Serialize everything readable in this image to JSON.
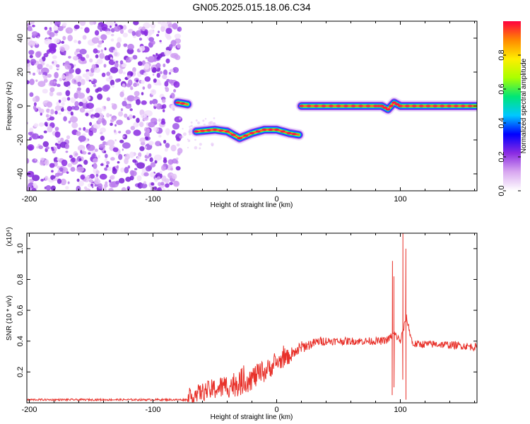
{
  "title": "GN05.2025.015.18.06.C34",
  "chart_data": [
    {
      "type": "heatmap",
      "xlabel": "Height of straight line (km)",
      "ylabel": "Frequency (Hz)",
      "xlim": [
        -202,
        162
      ],
      "ylim": [
        -50,
        50
      ],
      "xticks": [
        -200,
        -100,
        0,
        100
      ],
      "yticks": [
        -40,
        -20,
        0,
        20,
        40
      ],
      "colorbar": {
        "label": "Normalized spectral amplitude",
        "range": [
          0,
          1
        ],
        "ticks": [
          "0.0",
          "0.2",
          "0.4",
          "0.6",
          "0.8"
        ],
        "colors": [
          "#ffffff",
          "#d9a8f0",
          "#8b2be2",
          "#0000ff",
          "#00c8ff",
          "#00e676",
          "#aaff00",
          "#ffee00",
          "#ff8800",
          "#ff0040"
        ]
      },
      "features": [
        {
          "type": "noise",
          "x": [
            -202,
            -78
          ],
          "y": [
            -50,
            50
          ]
        },
        {
          "type": "track",
          "points": [
            [
              -80,
              2
            ],
            [
              -72,
              1
            ]
          ]
        },
        {
          "type": "track",
          "points": [
            [
              -65,
              -15
            ],
            [
              -50,
              -14
            ],
            [
              -40,
              -15
            ],
            [
              -30,
              -19
            ],
            [
              -20,
              -16
            ],
            [
              -10,
              -14
            ],
            [
              0,
              -14
            ],
            [
              10,
              -16
            ],
            [
              18,
              -17
            ]
          ]
        },
        {
          "type": "track",
          "points": [
            [
              20,
              0
            ],
            [
              80,
              0
            ],
            [
              85,
              0
            ],
            [
              90,
              -2
            ],
            [
              95,
              2
            ],
            [
              100,
              0
            ],
            [
              162,
              0
            ]
          ]
        }
      ]
    },
    {
      "type": "line",
      "xlabel": "Height of straight line (km)",
      "ylabel": "SNR (10 * v/v)",
      "multiplier": "(x10⁴)",
      "xlim": [
        -202,
        162
      ],
      "ylim": [
        0,
        1.1
      ],
      "xticks": [
        -200,
        -100,
        0,
        100
      ],
      "yticks": [
        0.2,
        0.4,
        0.6,
        0.8,
        1.0
      ],
      "series": [
        {
          "color": "#e8312a",
          "x": [
            -202,
            -100,
            -72,
            -65,
            -55,
            -45,
            -35,
            -20,
            -10,
            0,
            10,
            20,
            35,
            50,
            70,
            85,
            90,
            95,
            100,
            105,
            110,
            130,
            150,
            162
          ],
          "values": [
            0.02,
            0.02,
            0.02,
            0.06,
            0.08,
            0.1,
            0.12,
            0.16,
            0.2,
            0.26,
            0.3,
            0.36,
            0.4,
            0.4,
            0.4,
            0.4,
            0.41,
            0.45,
            0.4,
            0.55,
            0.38,
            0.38,
            0.37,
            0.36
          ],
          "spikes": [
            {
              "x": 93.5,
              "values": [
                0.92,
                0.05
              ]
            },
            {
              "x": 95,
              "values": [
                0.82,
                0.1
              ]
            },
            {
              "x": 102,
              "values": [
                1.1,
                0.15
              ]
            },
            {
              "x": 104.5,
              "values": [
                0.02,
                1.0
              ]
            }
          ]
        }
      ]
    }
  ]
}
